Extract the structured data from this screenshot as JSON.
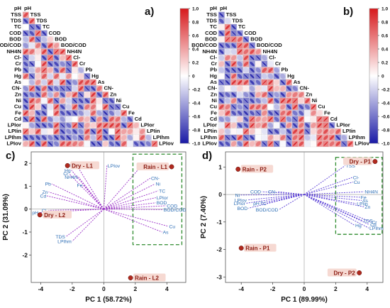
{
  "panel_labels": {
    "a": "a)",
    "b": "b)",
    "c": "c)",
    "d": "d)"
  },
  "corr_vars": [
    "pH",
    "TSS",
    "TDS",
    "TC",
    "COD",
    "BOD",
    "BOD/COD",
    "NH4N",
    "Cl-",
    "Cr",
    "Pb",
    "Hg",
    "As",
    "CN-",
    "Zn",
    "Ni",
    "Cu",
    "Fe",
    "Cd",
    "LPIor",
    "LPIin",
    "LPIhm",
    "LPIov"
  ],
  "colorbar_ticks": [
    "1.0",
    "0.8",
    "0.6",
    "0.4",
    "0.2",
    "0",
    "-0.2",
    "-0.4",
    "-0.6",
    "-0.8",
    "-1.0"
  ],
  "colors": {
    "positive": "#d7191c",
    "neutral": "#ffffff",
    "negative": "#1a1aa6",
    "loading_text": "#2c6db5",
    "loading_line": "#9b30c8",
    "loading_line_d": "#5a3fd6",
    "sample_point": "#b0291e",
    "box": "#2e8b2e"
  },
  "chart_data": [
    {
      "type": "heatmap",
      "panel": "a)",
      "variables": [
        "pH",
        "TSS",
        "TDS",
        "TC",
        "COD",
        "BOD",
        "BOD/COD",
        "NH4N",
        "Cl-",
        "Cr",
        "Pb",
        "Hg",
        "As",
        "CN-",
        "Zn",
        "Ni",
        "Cu",
        "Fe",
        "Cd",
        "LPIor",
        "LPIin",
        "LPIhm",
        "LPIov"
      ],
      "value_range": [
        -1.0,
        1.0
      ],
      "note_values": "lower-triangle correlation ellipses (estimated)"
    },
    {
      "type": "heatmap",
      "panel": "b)",
      "variables": [
        "pH",
        "TSS",
        "TDS",
        "TC",
        "COD",
        "BOD",
        "BOD/COD",
        "NH4N",
        "Cl-",
        "Cr",
        "Pb",
        "Hg",
        "As",
        "CN-",
        "Zn",
        "Ni",
        "Cu",
        "Fe",
        "Cd",
        "LPIor",
        "LPIin",
        "LPIhm",
        "LPIov"
      ],
      "value_range": [
        -1.0,
        1.0
      ]
    },
    {
      "type": "scatter",
      "panel": "c)",
      "xlabel": "PC 1 (58.72%)",
      "ylabel": "PC 2 (31.09%)",
      "xlim": [
        -4.6,
        5.2
      ],
      "ylim": [
        -3.2,
        2.5
      ],
      "xticks": [
        -4,
        -2,
        0,
        2,
        4
      ],
      "yticks": [
        -2,
        -1,
        0,
        1,
        2
      ],
      "samples": [
        {
          "name": "Dry - L1",
          "x": -2.3,
          "y": 1.9
        },
        {
          "name": "Rain - L1",
          "x": 4.3,
          "y": 1.85
        },
        {
          "name": "Dry - L2",
          "x": -4.05,
          "y": -0.25
        },
        {
          "name": "Rain - L2",
          "x": 1.7,
          "y": -3.0
        }
      ],
      "loadings": [
        {
          "name": "Cr",
          "x": -2.2,
          "y": 1.55
        },
        {
          "name": "Hg",
          "x": -2.05,
          "y": 1.7
        },
        {
          "name": "LPIin",
          "x": -1.7,
          "y": 1.9
        },
        {
          "name": "LPIov",
          "x": 0.2,
          "y": 1.9
        },
        {
          "name": "NH4N",
          "x": -1.6,
          "y": 1.4
        },
        {
          "name": "Fe",
          "x": -1.3,
          "y": 1.05
        },
        {
          "name": "Pb",
          "x": -3.3,
          "y": 1.1
        },
        {
          "name": "Zn",
          "x": -3.5,
          "y": 0.75
        },
        {
          "name": "Cd",
          "x": -3.6,
          "y": 0.58
        },
        {
          "name": "Cl-",
          "x": -3.5,
          "y": -0.05
        },
        {
          "name": "pH",
          "x": -4.1,
          "y": -0.15
        },
        {
          "name": "TDS",
          "x": -2.4,
          "y": -1.2
        },
        {
          "name": "LPIhm",
          "x": -2.0,
          "y": -1.4
        },
        {
          "name": "TSS",
          "x": 2.4,
          "y": 1.9
        },
        {
          "name": "CN-",
          "x": 2.95,
          "y": 1.35
        },
        {
          "name": "Ni",
          "x": 3.25,
          "y": 1.1
        },
        {
          "name": "TC",
          "x": 3.45,
          "y": 0.8
        },
        {
          "name": "LPIor",
          "x": 3.3,
          "y": 0.5
        },
        {
          "name": "BOD",
          "x": 3.3,
          "y": 0.28
        },
        {
          "name": "COD",
          "x": 3.95,
          "y": 0.15
        },
        {
          "name": "BOD/COD",
          "x": 3.75,
          "y": -0.02
        },
        {
          "name": "Cu",
          "x": 4.1,
          "y": -0.75
        },
        {
          "name": "As",
          "x": 3.7,
          "y": -1.0
        }
      ],
      "box": {
        "x": [
          1.85,
          4.95
        ],
        "y": [
          -1.55,
          2.4
        ]
      }
    },
    {
      "type": "scatter",
      "panel": "d)",
      "xlabel": "PC 1 (89.99%)",
      "ylabel": "PC 2 (7.40%)",
      "xlim": [
        -5.0,
        5.0
      ],
      "ylim": [
        -3.2,
        1.55
      ],
      "xticks": [
        -4,
        -2,
        0,
        2,
        4
      ],
      "yticks": [
        -3,
        -2,
        -1,
        0,
        1
      ],
      "samples": [
        {
          "name": "Dry - P1",
          "x": 4.5,
          "y": 1.2
        },
        {
          "name": "Rain - P2",
          "x": -4.2,
          "y": 0.92
        },
        {
          "name": "Rain - P1",
          "x": -4.0,
          "y": -1.95
        },
        {
          "name": "Dry - P2",
          "x": 3.5,
          "y": -2.85
        }
      ],
      "loadings": [
        {
          "name": "TSS",
          "x": 2.6,
          "y": 1.05
        },
        {
          "name": "Cl-",
          "x": 3.05,
          "y": 0.62
        },
        {
          "name": "Cu",
          "x": 3.1,
          "y": 0.45
        },
        {
          "name": "NH4N",
          "x": 3.8,
          "y": 0.1
        },
        {
          "name": "Fe",
          "x": 3.55,
          "y": -0.1
        },
        {
          "name": "As",
          "x": 3.65,
          "y": -0.22
        },
        {
          "name": "LPIin",
          "x": 3.3,
          "y": -0.33
        },
        {
          "name": "Zn",
          "x": 3.8,
          "y": -0.45
        },
        {
          "name": "TDS",
          "x": 3.7,
          "y": -0.95
        },
        {
          "name": "Cr",
          "x": 4.25,
          "y": -1.0
        },
        {
          "name": "Cd",
          "x": 4.15,
          "y": -1.1
        },
        {
          "name": "LPIhm",
          "x": 4.1,
          "y": -1.22
        },
        {
          "name": "Hg",
          "x": 3.2,
          "y": -1.12
        },
        {
          "name": "COD",
          "x": -2.7,
          "y": 0.1
        },
        {
          "name": "CN-",
          "x": -1.7,
          "y": 0.1
        },
        {
          "name": "Ni",
          "x": -4.05,
          "y": -0.02
        },
        {
          "name": "LPIov",
          "x": -3.6,
          "y": -0.2
        },
        {
          "name": "LPIor",
          "x": -3.7,
          "y": -0.32
        },
        {
          "name": "pH",
          "x": -2.8,
          "y": -0.32
        },
        {
          "name": "TC",
          "x": -2.35,
          "y": -0.32
        },
        {
          "name": "BOD",
          "x": -3.55,
          "y": -0.5
        },
        {
          "name": "BOD/COD",
          "x": -1.6,
          "y": -0.55
        }
      ],
      "box": {
        "x": [
          2.0,
          4.95
        ],
        "y": [
          -1.45,
          1.35
        ]
      }
    }
  ]
}
